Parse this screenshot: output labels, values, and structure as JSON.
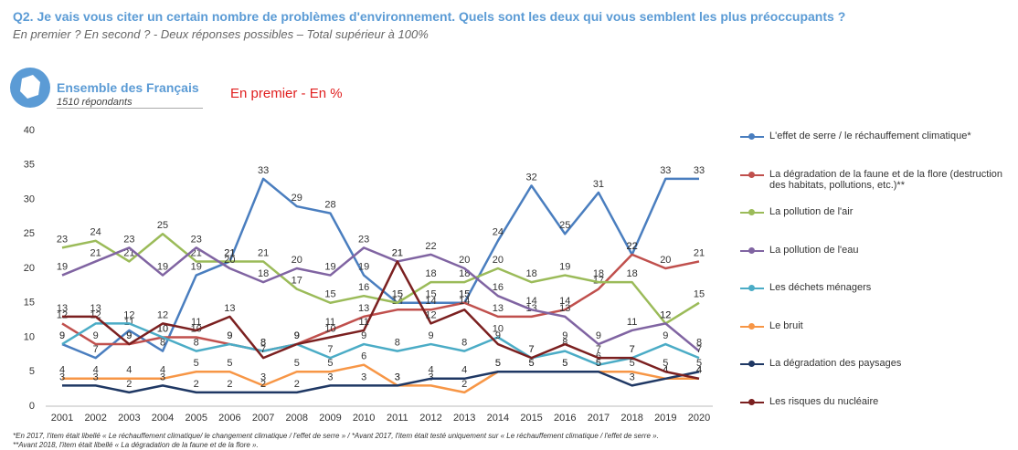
{
  "chart_data": {
    "type": "line",
    "title": "Q2. Je vais vous citer un certain nombre de problèmes d'environnement. Quels sont les deux qui vous semblent les plus préoccupants ?",
    "subtitle": "En premier ? En second ? - Deux réponses possibles – Total supérieur à 100%",
    "panel_title": "Ensemble des Français",
    "panel_subtitle": "1510 répondants",
    "section": "En premier - En %",
    "categories": [
      "2001",
      "2002",
      "2003",
      "2004",
      "2005",
      "2006",
      "2007",
      "2008",
      "2009",
      "2010",
      "2011",
      "2012",
      "2013",
      "2014",
      "2015",
      "2016",
      "2017",
      "2018",
      "2019",
      "2020"
    ],
    "ylim": [
      0,
      40
    ],
    "yticks": [
      0,
      5,
      10,
      15,
      20,
      25,
      30,
      35,
      40
    ],
    "series": [
      {
        "name": "L'effet de serre / le réchauffement climatique*",
        "color": "#4a7ebf",
        "values": [
          9,
          7,
          11,
          8,
          19,
          21,
          33,
          29,
          28,
          19,
          15,
          15,
          15,
          24,
          32,
          25,
          31,
          22,
          33,
          33
        ]
      },
      {
        "name": "La dégradation de la faune et de la flore (destruction des habitats, pollutions, etc.)**",
        "color": "#c0504d",
        "values": [
          12,
          9,
          9,
          10,
          10,
          9,
          8,
          9,
          11,
          13,
          14,
          14,
          15,
          13,
          13,
          14,
          17,
          22,
          20,
          21
        ]
      },
      {
        "name": "La pollution de l'air",
        "color": "#9bbb59",
        "values": [
          23,
          24,
          21,
          25,
          21,
          21,
          21,
          17,
          15,
          16,
          15,
          18,
          18,
          20,
          18,
          19,
          18,
          18,
          12,
          15
        ]
      },
      {
        "name": "La pollution de l'eau",
        "color": "#8064a2",
        "values": [
          19,
          21,
          23,
          19,
          23,
          20,
          18,
          20,
          19,
          23,
          21,
          22,
          20,
          16,
          14,
          13,
          9,
          11,
          12,
          8
        ]
      },
      {
        "name": "Les déchets ménagers",
        "color": "#4bacc6",
        "values": [
          9,
          12,
          12,
          10,
          8,
          9,
          8,
          9,
          7,
          9,
          8,
          9,
          8,
          10,
          7,
          8,
          6,
          7,
          9,
          7
        ]
      },
      {
        "name": "Le bruit",
        "color": "#f79646",
        "values": [
          4,
          4,
          4,
          4,
          5,
          5,
          3,
          5,
          5,
          6,
          3,
          3,
          2,
          5,
          5,
          5,
          5,
          5,
          4,
          4
        ]
      },
      {
        "name": "La dégradation des paysages",
        "color": "#1f3864",
        "values": [
          3,
          3,
          2,
          3,
          2,
          2,
          2,
          2,
          3,
          3,
          3,
          4,
          4,
          5,
          5,
          5,
          5,
          3,
          4,
          5
        ]
      },
      {
        "name": "Les risques du nucléaire",
        "color": "#7b2020",
        "values": [
          13,
          13,
          9,
          12,
          11,
          13,
          7,
          9,
          10,
          11,
          21,
          12,
          14,
          9,
          7,
          9,
          7,
          7,
          5,
          4
        ]
      }
    ],
    "footnotes": [
      "*En 2017, l'item était libellé « Le réchauffement climatique/ le changement climatique / l'effet de serre » / *Avant 2017, l'item était testé uniquement sur « Le réchauffement climatique / l'effet de serre ».",
      "**Avant 2018, l'item était libellé « La dégradation de la faune et de la flore »."
    ]
  }
}
